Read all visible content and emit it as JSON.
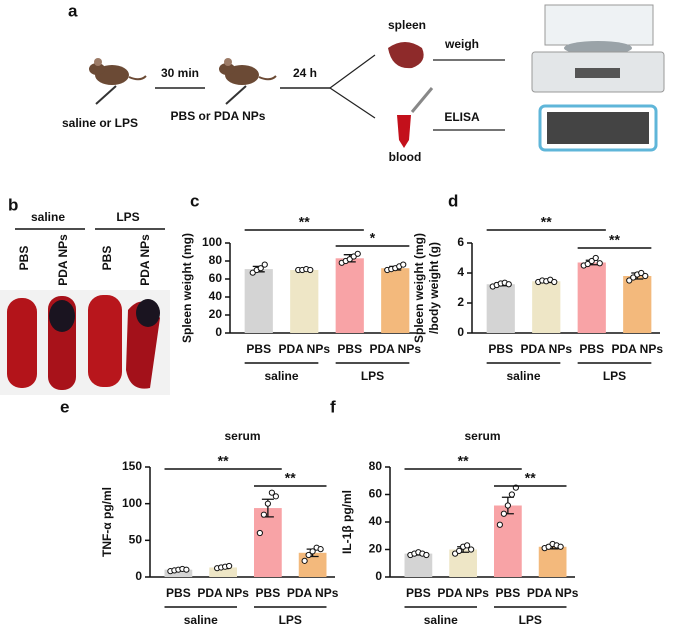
{
  "panel_a": {
    "label": "a",
    "treatment1": "saline or LPS",
    "interval1": "30 min",
    "treatment2": "PBS or PDA NPs",
    "interval2": "24 h",
    "organ": "spleen",
    "fluid": "blood",
    "method1": "weigh",
    "method2": "ELISA"
  },
  "panel_b": {
    "label": "b",
    "groups": [
      "saline",
      "LPS"
    ],
    "lanes": [
      "PBS",
      "PDA NPs",
      "PBS",
      "PDA NPs"
    ]
  },
  "chart_data": [
    {
      "type": "bar",
      "panel": "c",
      "ylabel": "Spleen weight (mg)",
      "categories": [
        "PBS",
        "PDA NPs",
        "PBS",
        "PDA NPs"
      ],
      "groups": [
        "saline",
        "LPS"
      ],
      "values": [
        71,
        70,
        83,
        72
      ],
      "errors": [
        3,
        1,
        4,
        2
      ],
      "points": [
        [
          67,
          70,
          72,
          76
        ],
        [
          70,
          70,
          71,
          70
        ],
        [
          78,
          80,
          82,
          85,
          88
        ],
        [
          70,
          71,
          72,
          74,
          76
        ]
      ],
      "colors": [
        "#d4d4d4",
        "#eee6c6",
        "#f8a3a6",
        "#f3b97c"
      ],
      "ylim": [
        0,
        100
      ],
      "yticks": [
        0,
        20,
        40,
        60,
        80,
        100
      ],
      "significance": [
        "**",
        "*"
      ]
    },
    {
      "type": "bar",
      "panel": "d",
      "ylabel": [
        "Spleen weight (mg)",
        "/body weight (g)"
      ],
      "categories": [
        "PBS",
        "PDA NPs",
        "PBS",
        "PDA NPs"
      ],
      "groups": [
        "saline",
        "LPS"
      ],
      "values": [
        3.25,
        3.45,
        4.7,
        3.8
      ],
      "errors": [
        0.1,
        0.08,
        0.15,
        0.2
      ],
      "points": [
        [
          3.1,
          3.2,
          3.3,
          3.35,
          3.25
        ],
        [
          3.4,
          3.5,
          3.45,
          3.55,
          3.4
        ],
        [
          4.5,
          4.6,
          4.8,
          5.0,
          4.65
        ],
        [
          3.5,
          3.7,
          3.9,
          4.0,
          3.8
        ]
      ],
      "colors": [
        "#d4d4d4",
        "#eee6c6",
        "#f8a3a6",
        "#f3b97c"
      ],
      "ylim": [
        0,
        6
      ],
      "yticks": [
        0,
        2,
        4,
        6
      ],
      "significance": [
        "**",
        "**"
      ]
    },
    {
      "type": "bar",
      "panel": "e",
      "title": "serum",
      "ylabel": "TNF-α pg/ml",
      "categories": [
        "PBS",
        "PDA NPs",
        "PBS",
        "PDA NPs"
      ],
      "groups": [
        "saline",
        "LPS"
      ],
      "values": [
        10,
        13,
        94,
        33
      ],
      "errors": [
        1,
        1.5,
        12,
        5
      ],
      "points": [
        [
          8,
          9,
          10,
          11,
          10
        ],
        [
          12,
          13,
          14,
          15
        ],
        [
          60,
          85,
          100,
          115,
          110
        ],
        [
          22,
          30,
          35,
          40,
          38
        ]
      ],
      "colors": [
        "#d4d4d4",
        "#eee6c6",
        "#f8a3a6",
        "#f3b97c"
      ],
      "ylim": [
        0,
        150
      ],
      "yticks": [
        0,
        50,
        100,
        150
      ],
      "significance": [
        "**",
        "**"
      ]
    },
    {
      "type": "bar",
      "panel": "f",
      "title": "serum",
      "ylabel": "IL-1β pg/ml",
      "categories": [
        "PBS",
        "PDA NPs",
        "PBS",
        "PDA NPs"
      ],
      "groups": [
        "saline",
        "LPS"
      ],
      "values": [
        17,
        20,
        52,
        22
      ],
      "errors": [
        1,
        2,
        6,
        1.5
      ],
      "points": [
        [
          16,
          17,
          18,
          17,
          16
        ],
        [
          17,
          19,
          22,
          23,
          20
        ],
        [
          38,
          46,
          52,
          60,
          65
        ],
        [
          21,
          22,
          24,
          23,
          22
        ]
      ],
      "colors": [
        "#d4d4d4",
        "#eee6c6",
        "#f8a3a6",
        "#f3b97c"
      ],
      "ylim": [
        0,
        80
      ],
      "yticks": [
        0,
        20,
        40,
        60,
        80
      ],
      "significance": [
        "**",
        "**"
      ]
    }
  ]
}
